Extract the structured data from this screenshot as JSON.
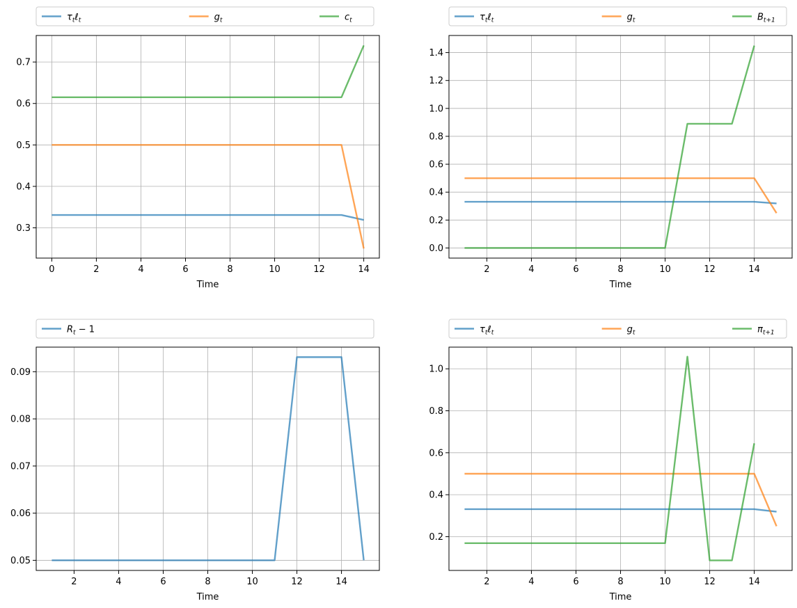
{
  "figure": {
    "background": "#ffffff",
    "grid_color": "#b0b0b0"
  },
  "colors": {
    "blue": "#1f77b4",
    "orange": "#ff7f0e",
    "green": "#2ca02c"
  },
  "chart_data": [
    {
      "type": "line",
      "xlabel": "Time",
      "grid": true,
      "legend_position": "above-plot, expanded across width",
      "xlim": [
        -0.7,
        14.7
      ],
      "ylim": [
        0.227,
        0.764
      ],
      "xticks": [
        0,
        2,
        4,
        6,
        8,
        10,
        12,
        14
      ],
      "yticks": [
        0.3,
        0.4,
        0.5,
        0.6,
        0.7
      ],
      "ytick_labels": [
        "0.3",
        "0.4",
        "0.5",
        "0.6",
        "0.7"
      ],
      "series": [
        {
          "name": "τtℓt",
          "label_main": "τ",
          "label_sub1": "t",
          "label_mid": "ℓ",
          "label_sub2": "t",
          "color": "#1f77b4",
          "x": [
            0,
            1,
            2,
            3,
            4,
            5,
            6,
            7,
            8,
            9,
            10,
            11,
            12,
            13,
            14
          ],
          "y": [
            0.331,
            0.331,
            0.331,
            0.331,
            0.331,
            0.331,
            0.331,
            0.331,
            0.331,
            0.331,
            0.331,
            0.331,
            0.331,
            0.331,
            0.319
          ]
        },
        {
          "name": "gt",
          "label_main": "g",
          "label_sub1": "t",
          "color": "#ff7f0e",
          "x": [
            0,
            1,
            2,
            3,
            4,
            5,
            6,
            7,
            8,
            9,
            10,
            11,
            12,
            13,
            14
          ],
          "y": [
            0.5,
            0.5,
            0.5,
            0.5,
            0.5,
            0.5,
            0.5,
            0.5,
            0.5,
            0.5,
            0.5,
            0.5,
            0.5,
            0.5,
            0.25
          ]
        },
        {
          "name": "ct",
          "label_main": "c",
          "label_sub1": "t",
          "color": "#2ca02c",
          "x": [
            0,
            1,
            2,
            3,
            4,
            5,
            6,
            7,
            8,
            9,
            10,
            11,
            12,
            13,
            14
          ],
          "y": [
            0.615,
            0.615,
            0.615,
            0.615,
            0.615,
            0.615,
            0.615,
            0.615,
            0.615,
            0.615,
            0.615,
            0.615,
            0.615,
            0.615,
            0.74
          ]
        }
      ]
    },
    {
      "type": "line",
      "xlabel": "Time",
      "grid": true,
      "legend_position": "above-plot, expanded across width",
      "xlim": [
        0.3,
        15.7
      ],
      "ylim": [
        -0.0725,
        1.5225
      ],
      "xticks": [
        2,
        4,
        6,
        8,
        10,
        12,
        14
      ],
      "yticks": [
        0.0,
        0.2,
        0.4,
        0.6,
        0.8,
        1.0,
        1.2,
        1.4
      ],
      "ytick_labels": [
        "0.0",
        "0.2",
        "0.4",
        "0.6",
        "0.8",
        "1.0",
        "1.2",
        "1.4"
      ],
      "series": [
        {
          "name": "τtℓt",
          "label_main": "τ",
          "label_sub1": "t",
          "label_mid": "ℓ",
          "label_sub2": "t",
          "color": "#1f77b4",
          "x": [
            1,
            2,
            3,
            4,
            5,
            6,
            7,
            8,
            9,
            10,
            11,
            12,
            13,
            14,
            15
          ],
          "y": [
            0.331,
            0.331,
            0.331,
            0.331,
            0.331,
            0.331,
            0.331,
            0.331,
            0.331,
            0.331,
            0.331,
            0.331,
            0.331,
            0.331,
            0.319
          ]
        },
        {
          "name": "gt",
          "label_main": "g",
          "label_sub1": "t",
          "color": "#ff7f0e",
          "x": [
            1,
            2,
            3,
            4,
            5,
            6,
            7,
            8,
            9,
            10,
            11,
            12,
            13,
            14,
            15
          ],
          "y": [
            0.5,
            0.5,
            0.5,
            0.5,
            0.5,
            0.5,
            0.5,
            0.5,
            0.5,
            0.5,
            0.5,
            0.5,
            0.5,
            0.5,
            0.25
          ]
        },
        {
          "name": "Bt+1",
          "label_main": "B",
          "label_sub1": "t+1",
          "color": "#2ca02c",
          "x": [
            1,
            2,
            3,
            4,
            5,
            6,
            7,
            8,
            9,
            10,
            11,
            12,
            13,
            14
          ],
          "y": [
            0,
            0,
            0,
            0,
            0,
            0,
            0,
            0,
            0,
            0,
            0.89,
            0.89,
            0.89,
            1.45
          ]
        }
      ]
    },
    {
      "type": "line",
      "xlabel": "Time",
      "grid": true,
      "legend_position": "above-plot, expanded across width",
      "xlim": [
        0.3,
        15.7
      ],
      "ylim": [
        0.04785,
        0.09522
      ],
      "xticks": [
        2,
        4,
        6,
        8,
        10,
        12,
        14
      ],
      "yticks": [
        0.05,
        0.06,
        0.07,
        0.08,
        0.09
      ],
      "ytick_labels": [
        "0.05",
        "0.06",
        "0.07",
        "0.08",
        "0.09"
      ],
      "series": [
        {
          "name": "Rt−1",
          "label_main": "R",
          "label_sub1": "t",
          "label_tail": " − 1",
          "color": "#1f77b4",
          "x": [
            1,
            2,
            3,
            4,
            5,
            6,
            7,
            8,
            9,
            10,
            11,
            12,
            13,
            14,
            15
          ],
          "y": [
            0.05,
            0.05,
            0.05,
            0.05,
            0.05,
            0.05,
            0.05,
            0.05,
            0.05,
            0.05,
            0.05,
            0.0931,
            0.0931,
            0.0931,
            0.05
          ]
        }
      ]
    },
    {
      "type": "line",
      "xlabel": "Time",
      "grid": true,
      "legend_position": "above-plot, expanded across width",
      "xlim": [
        0.3,
        15.7
      ],
      "ylim": [
        0.0392,
        1.1033
      ],
      "xticks": [
        2,
        4,
        6,
        8,
        10,
        12,
        14
      ],
      "yticks": [
        0.2,
        0.4,
        0.6,
        0.8,
        1.0
      ],
      "ytick_labels": [
        "0.2",
        "0.4",
        "0.6",
        "0.8",
        "1.0"
      ],
      "series": [
        {
          "name": "τtℓt",
          "label_main": "τ",
          "label_sub1": "t",
          "label_mid": "ℓ",
          "label_sub2": "t",
          "color": "#1f77b4",
          "x": [
            1,
            2,
            3,
            4,
            5,
            6,
            7,
            8,
            9,
            10,
            11,
            12,
            13,
            14,
            15
          ],
          "y": [
            0.331,
            0.331,
            0.331,
            0.331,
            0.331,
            0.331,
            0.331,
            0.331,
            0.331,
            0.331,
            0.331,
            0.331,
            0.331,
            0.331,
            0.319
          ]
        },
        {
          "name": "gt",
          "label_main": "g",
          "label_sub1": "t",
          "color": "#ff7f0e",
          "x": [
            1,
            2,
            3,
            4,
            5,
            6,
            7,
            8,
            9,
            10,
            11,
            12,
            13,
            14,
            15
          ],
          "y": [
            0.5,
            0.5,
            0.5,
            0.5,
            0.5,
            0.5,
            0.5,
            0.5,
            0.5,
            0.5,
            0.5,
            0.5,
            0.5,
            0.5,
            0.25
          ]
        },
        {
          "name": "πt+1",
          "label_main": "π",
          "label_sub1": "t+1",
          "color": "#2ca02c",
          "x": [
            1,
            2,
            3,
            4,
            5,
            6,
            7,
            8,
            9,
            10,
            11,
            12,
            13,
            14
          ],
          "y": [
            0.169,
            0.169,
            0.169,
            0.169,
            0.169,
            0.169,
            0.169,
            0.169,
            0.169,
            0.169,
            1.058,
            0.087,
            0.087,
            0.645
          ]
        }
      ]
    }
  ]
}
